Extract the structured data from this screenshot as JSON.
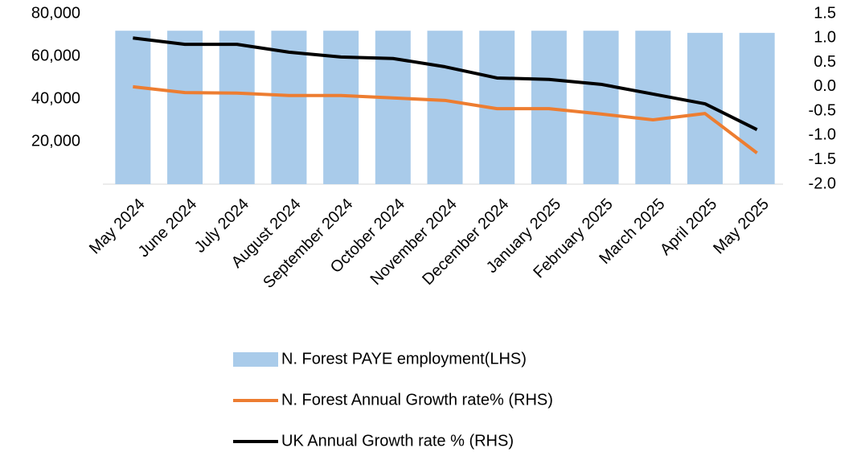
{
  "chart_data": {
    "type": "bar",
    "categories": [
      "May 2024",
      "June 2024",
      "July 2024",
      "August 2024",
      "September 2024",
      "October 2024",
      "November 2024",
      "December 2024",
      "January 2025",
      "February 2025",
      "March 2025",
      "April 2025",
      "May 2025"
    ],
    "series": [
      {
        "name": "N. Forest PAYE employment(LHS)",
        "type": "bar",
        "color": "#a9cbea",
        "values": [
          72000,
          72000,
          72000,
          72000,
          72000,
          72000,
          72000,
          72000,
          72000,
          72000,
          72000,
          71000,
          71000
        ]
      },
      {
        "name": "N. Forest Annual Growth rate% (RHS)",
        "type": "line",
        "axis": "y2",
        "color": "#ed7d31",
        "values": [
          0.0,
          -0.12,
          -0.13,
          -0.18,
          -0.18,
          -0.23,
          -0.28,
          -0.45,
          -0.45,
          -0.56,
          -0.68,
          -0.55,
          -1.36
        ]
      },
      {
        "name": "UK Annual Growth rate % (RHS)",
        "type": "line",
        "axis": "y2",
        "color": "#000000",
        "values": [
          1.0,
          0.87,
          0.87,
          0.71,
          0.61,
          0.58,
          0.41,
          0.18,
          0.15,
          0.05,
          -0.15,
          -0.35,
          -0.88
        ]
      }
    ],
    "ylim": [
      0,
      80000
    ],
    "yticks": [
      {
        "value": 20000,
        "label": "20,000"
      },
      {
        "value": 40000,
        "label": "40,000"
      },
      {
        "value": 60000,
        "label": "60,000"
      },
      {
        "value": 80000,
        "label": "80,000"
      }
    ],
    "y2lim": [
      -2.0,
      1.5
    ],
    "y2ticks": [
      {
        "value": -2,
        "label": "-2.0"
      },
      -1.5,
      {
        "value": -1,
        "label": "-1.0"
      },
      -0.5,
      {
        "value": 0,
        "label": "0.0"
      },
      0.5,
      {
        "value": 1,
        "label": "1.0"
      },
      1.5
    ],
    "grid": false
  }
}
